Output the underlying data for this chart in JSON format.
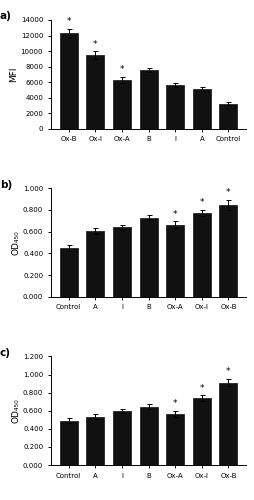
{
  "panel_a": {
    "categories": [
      "Ox-B",
      "Ox-I",
      "Ox-A",
      "B",
      "I",
      "A",
      "Control"
    ],
    "values": [
      12300,
      9450,
      6250,
      7550,
      5600,
      5100,
      3200
    ],
    "errors": [
      600,
      500,
      400,
      300,
      250,
      250,
      200
    ],
    "ylabel": "MFI",
    "ylim": [
      0,
      14000
    ],
    "yticks": [
      0,
      2000,
      4000,
      6000,
      8000,
      10000,
      12000,
      14000
    ],
    "yticklabels": [
      "0",
      "2000",
      "4000",
      "6000",
      "8000",
      "10000",
      "12000",
      "14000"
    ],
    "asterisk": [
      true,
      true,
      true,
      false,
      false,
      false,
      false
    ],
    "label": "a)"
  },
  "panel_b": {
    "categories": [
      "Control",
      "A",
      "I",
      "B",
      "Ox-A",
      "Ox-I",
      "Ox-B"
    ],
    "values": [
      0.45,
      0.605,
      0.64,
      0.73,
      0.665,
      0.77,
      0.845
    ],
    "errors": [
      0.03,
      0.025,
      0.025,
      0.025,
      0.03,
      0.03,
      0.05
    ],
    "ylabel": "OD₄₅₀",
    "ylim": [
      0,
      1.0
    ],
    "yticks": [
      0.0,
      0.2,
      0.4,
      0.6,
      0.8,
      1.0
    ],
    "yticklabels": [
      "0.000",
      "0.200",
      "0.400",
      "0.600",
      "0.800",
      "1.000"
    ],
    "asterisk": [
      false,
      false,
      false,
      false,
      true,
      true,
      true
    ],
    "label": "b)"
  },
  "panel_c": {
    "categories": [
      "Control",
      "A",
      "I",
      "B",
      "Ox-A",
      "Ox-I",
      "Ox-B"
    ],
    "values": [
      0.49,
      0.535,
      0.6,
      0.645,
      0.565,
      0.74,
      0.91
    ],
    "errors": [
      0.025,
      0.025,
      0.02,
      0.025,
      0.03,
      0.03,
      0.04
    ],
    "ylabel": "OD₄₅₀",
    "ylim": [
      0,
      1.2
    ],
    "yticks": [
      0.0,
      0.2,
      0.4,
      0.6,
      0.8,
      1.0,
      1.2
    ],
    "yticklabels": [
      "0.000",
      "0.200",
      "0.400",
      "0.600",
      "0.800",
      "1.000",
      "1.200"
    ],
    "asterisk": [
      false,
      false,
      false,
      false,
      true,
      true,
      true
    ],
    "label": "c)"
  },
  "bar_color": "#111111",
  "bar_width": 0.68,
  "tick_fontsize": 5.0,
  "label_fontsize": 6.5,
  "panel_label_fontsize": 7.5,
  "asterisk_fontsize": 6.5
}
